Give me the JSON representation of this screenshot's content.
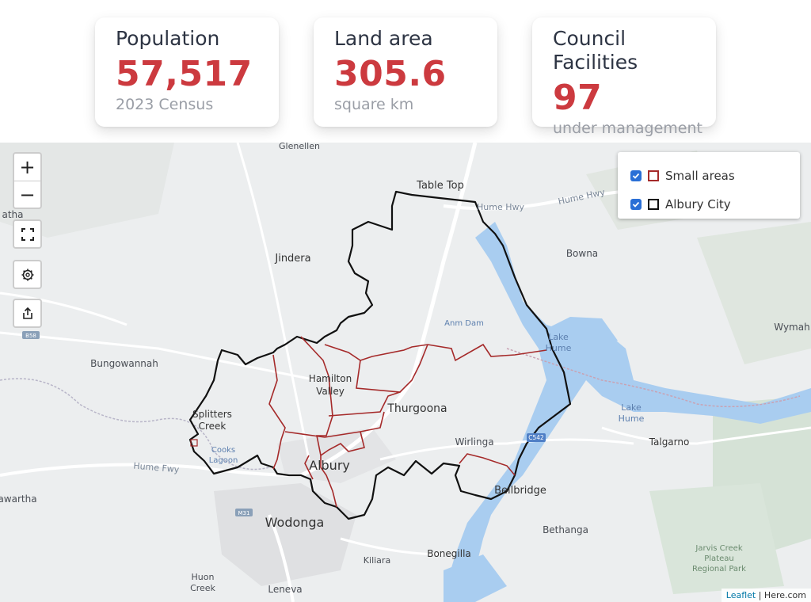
{
  "stats": [
    {
      "label": "Population",
      "value": "57,517",
      "sub": "2023 Census"
    },
    {
      "label": "Land area",
      "value": "305.6",
      "sub": "square km"
    },
    {
      "label": "Council Facilities",
      "value": "97",
      "sub": "under management"
    }
  ],
  "map": {
    "controls": {
      "zoom_in": "+",
      "zoom_out": "−"
    },
    "legend": [
      {
        "label": "Small areas",
        "color": "#a52a2a",
        "checked": true
      },
      {
        "label": "Albury City",
        "color": "#111111",
        "checked": true
      }
    ],
    "attribution": {
      "leaflet": "Leaflet",
      "separator": " | ",
      "provider": "Here.com"
    },
    "places": {
      "glenellen": "Glenellen",
      "table_top": "Table Top",
      "hume_hwy_1": "Hume Hwy",
      "hume_hwy_2": "Hume Hwy",
      "jindera": "Jindera",
      "bowna": "Bowna",
      "atha": "atha",
      "anm_dam": "Anm Dam",
      "lake_hume_1": "Lake",
      "lake_hume_1b": "Hume",
      "wymah": "Wymah",
      "bungowannah": "Bungowannah",
      "hamilton": "Hamilton",
      "valley": "Valley",
      "thurgoona": "Thurgoona",
      "splitters": "Splitters",
      "creek": "Creek",
      "lake_hume_2": "Lake",
      "lake_hume_2b": "Hume",
      "cooks": "Cooks",
      "lagoon": "Lagoon",
      "wirlinga": "Wirlinga",
      "talgarno": "Talgarno",
      "c542": "C542",
      "hume_fwy": "Hume Fwy",
      "albury": "Albury",
      "bellbridge": "Bellbridge",
      "awartha": "awartha",
      "m31": "M31",
      "wodonga": "Wodonga",
      "bethanga": "Bethanga",
      "bonegilla": "Bonegilla",
      "jarvis": "Jarvis Creek",
      "plateau": "Plateau",
      "regional": "Regional Park",
      "kiliara": "Kiliara",
      "huon": "Huon",
      "huon_creek": "Creek",
      "leneva": "Leneva",
      "b58": "B58"
    }
  }
}
